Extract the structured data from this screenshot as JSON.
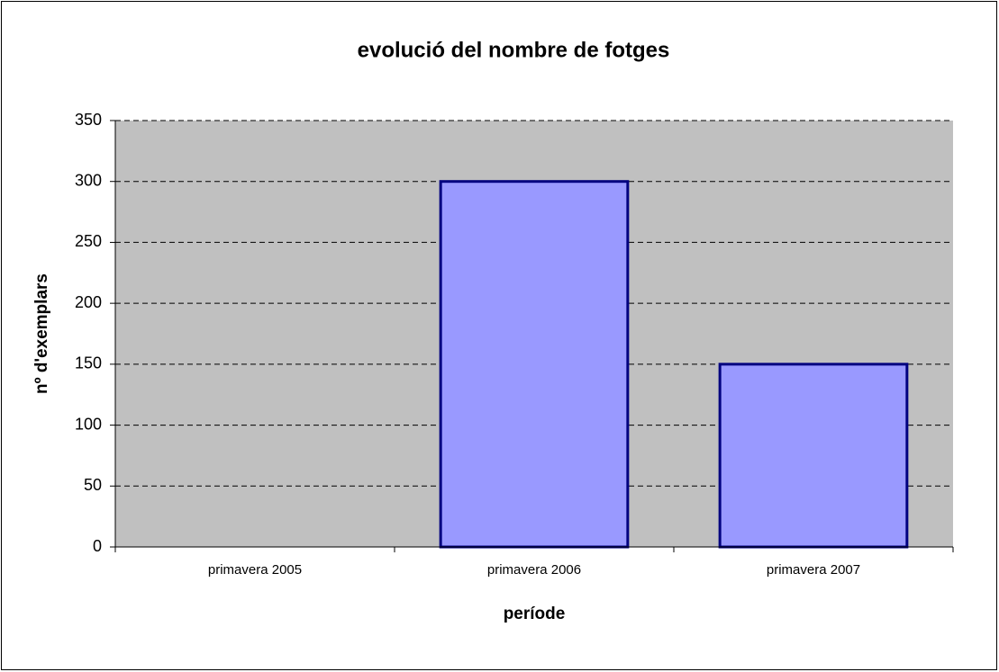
{
  "chart_data": {
    "type": "bar",
    "title": "evolució del nombre de fotges",
    "x_label": "període",
    "y_label": "nº d'exemplars",
    "categories": [
      "primavera 2005",
      "primavera 2006",
      "primavera 2007"
    ],
    "values": [
      0,
      300,
      150
    ],
    "color": "#9999ff",
    "edge_color": "#000080",
    "ylim": [
      0,
      350
    ],
    "yticks": [
      0,
      50,
      100,
      150,
      200,
      250,
      300,
      350
    ],
    "grid": true,
    "plot_background": "#c0c0c0"
  }
}
